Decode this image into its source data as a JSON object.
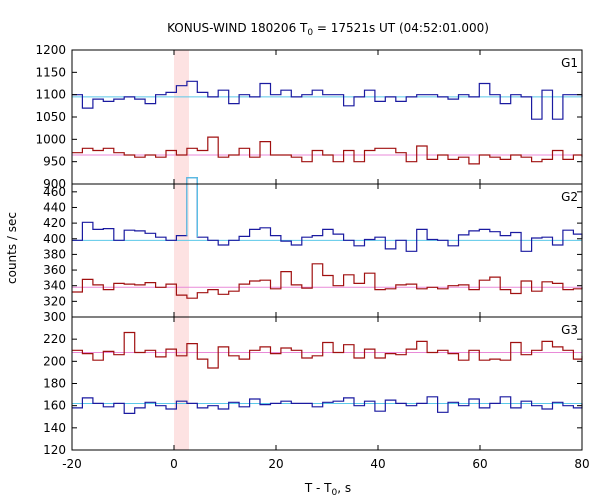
{
  "chart_data": {
    "type": "line",
    "title_main": "KONUS-WIND 180206 T",
    "title_sub": "0",
    "title_rest": " = 17521s UT (04:52:01.000)",
    "xlabel_main": "T - T",
    "xlabel_sub": "0",
    "xlabel_rest": ", s",
    "ylabel": "counts / sec",
    "xlim": [
      -20,
      80
    ],
    "x_ticks": [
      "-20",
      "0",
      "20",
      "40",
      "60",
      "80"
    ],
    "highlight_interval": [
      0,
      2.944
    ],
    "bin_edges": [
      -20,
      -17.952,
      -15.904,
      -13.856,
      -11.808,
      -9.76,
      -7.712,
      -5.664,
      -3.616,
      -1.568,
      0.48,
      2.528,
      4.576,
      6.624,
      8.672,
      10.72,
      12.768,
      14.816,
      16.864,
      18.912,
      20.96,
      23.008,
      25.056,
      27.104,
      29.152,
      31.2,
      33.248,
      35.296,
      37.344,
      39.392,
      41.44,
      43.488,
      45.536,
      47.584,
      49.632,
      51.68,
      53.728,
      55.776,
      57.824,
      59.872,
      61.92,
      63.968,
      66.016,
      68.064,
      70.112,
      72.16,
      74.208,
      76.256,
      78.304,
      80
    ],
    "panels": [
      {
        "label": "G1",
        "ylim": [
          900,
          1200
        ],
        "y_ticks": [
          "900",
          "950",
          "1000",
          "1050",
          "1100",
          "1150",
          "1200"
        ],
        "series": [
          {
            "color": "#1a1aa0",
            "background": 1095,
            "values": [
              1100,
              1070,
              1090,
              1085,
              1090,
              1095,
              1090,
              1080,
              1100,
              1105,
              1120,
              1130,
              1105,
              1095,
              1110,
              1080,
              1100,
              1095,
              1125,
              1100,
              1110,
              1095,
              1100,
              1110,
              1100,
              1100,
              1075,
              1095,
              1110,
              1085,
              1095,
              1085,
              1095,
              1100,
              1100,
              1095,
              1090,
              1100,
              1095,
              1125,
              1100,
              1080,
              1100,
              1095,
              1045,
              1110,
              1045,
              1100,
              1100,
              1095
            ]
          },
          {
            "color": "#a01010",
            "background": 965,
            "values": [
              970,
              980,
              975,
              980,
              970,
              965,
              960,
              965,
              960,
              975,
              965,
              980,
              975,
              1005,
              960,
              965,
              980,
              960,
              995,
              965,
              965,
              960,
              950,
              975,
              965,
              950,
              975,
              950,
              975,
              980,
              980,
              970,
              950,
              985,
              955,
              965,
              955,
              960,
              945,
              965,
              960,
              955,
              965,
              960,
              950,
              955,
              975,
              955,
              965,
              960
            ]
          }
        ]
      },
      {
        "label": "G2",
        "ylim": [
          300,
          470
        ],
        "y_ticks": [
          "300",
          "320",
          "340",
          "360",
          "380",
          "400",
          "420",
          "440",
          "460"
        ],
        "series": [
          {
            "color": "#1a1aa0",
            "background": 398,
            "values": [
              398,
              421,
              412,
              413,
              398,
              411,
              410,
              407,
              402,
              398,
              404,
              478,
              402,
              398,
              392,
              398,
              403,
              412,
              414,
              404,
              397,
              392,
              402,
              404,
              412,
              406,
              398,
              391,
              399,
              402,
              387,
              398,
              384,
              412,
              399,
              398,
              391,
              405,
              410,
              412,
              409,
              404,
              408,
              384,
              401,
              402,
              392,
              411,
              406,
              400
            ]
          },
          {
            "color": "#a01010",
            "background": 338,
            "values": [
              332,
              348,
              341,
              335,
              343,
              342,
              341,
              344,
              338,
              342,
              328,
              324,
              331,
              335,
              329,
              333,
              342,
              346,
              347,
              336,
              358,
              341,
              337,
              368,
              353,
              340,
              354,
              343,
              356,
              335,
              336,
              341,
              342,
              336,
              338,
              336,
              340,
              341,
              335,
              347,
              351,
              335,
              330,
              346,
              333,
              345,
              343,
              335,
              336,
              338
            ]
          }
        ]
      },
      {
        "label": "G3",
        "ylim": [
          120,
          240
        ],
        "y_ticks": [
          "120",
          "140",
          "160",
          "180",
          "200",
          "220"
        ],
        "series": [
          {
            "color": "#a01010",
            "background": 208,
            "values": [
              210,
              207,
              201,
              209,
              206,
              226,
              208,
              210,
              204,
              211,
              205,
              216,
              202,
              194,
              213,
              205,
              202,
              210,
              213,
              207,
              212,
              210,
              203,
              205,
              217,
              208,
              215,
              203,
              211,
              203,
              207,
              206,
              211,
              218,
              208,
              210,
              207,
              201,
              210,
              201,
              202,
              201,
              217,
              206,
              210,
              218,
              213,
              210,
              202,
              205
            ]
          },
          {
            "color": "#1a1aa0",
            "background": 162,
            "values": [
              158,
              167,
              162,
              159,
              162,
              153,
              158,
              163,
              160,
              157,
              164,
              162,
              158,
              160,
              157,
              163,
              159,
              166,
              161,
              162,
              164,
              162,
              162,
              159,
              163,
              164,
              167,
              160,
              164,
              155,
              165,
              162,
              160,
              162,
              168,
              154,
              163,
              160,
              166,
              158,
              162,
              168,
              158,
              164,
              160,
              157,
              163,
              160,
              158,
              162
            ]
          }
        ]
      }
    ]
  }
}
